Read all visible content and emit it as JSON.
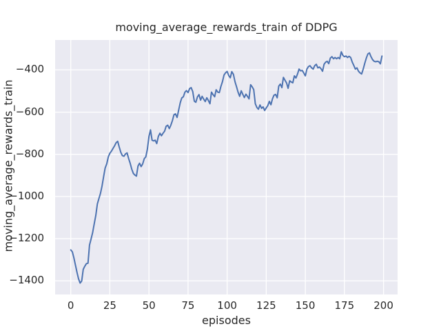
{
  "chart_data": {
    "type": "line",
    "title": "moving_average_rewards_train of DDPG",
    "xlabel": "episodes",
    "ylabel": "moving_average_rewards_train",
    "x_ticks": [
      0,
      25,
      50,
      75,
      100,
      125,
      150,
      175,
      200
    ],
    "x_tick_labels": [
      "0",
      "25",
      "50",
      "75",
      "100",
      "125",
      "150",
      "175",
      "200"
    ],
    "y_ticks": [
      -400,
      -600,
      -800,
      -1000,
      -1200,
      -1400
    ],
    "y_tick_labels": [
      "−400",
      "−600",
      "−800",
      "−1000",
      "−1200",
      "−1400"
    ],
    "xlim": [
      -10,
      209
    ],
    "ylim": [
      -1464,
      -258
    ],
    "grid": true,
    "legend_position": "none",
    "style": {
      "line_color": "#4C72B0",
      "axes_background": "#EAEAF2",
      "grid_color": "#FFFFFF",
      "text_color": "#262626",
      "figure_background": "#FFFFFF"
    },
    "series": [
      {
        "name": "moving_average_rewards_train",
        "x_start": 0,
        "x_step": 1,
        "values": [
          -1253,
          -1262,
          -1290,
          -1325,
          -1360,
          -1390,
          -1410,
          -1400,
          -1345,
          -1330,
          -1318,
          -1316,
          -1230,
          -1201,
          -1170,
          -1130,
          -1090,
          -1035,
          -1010,
          -985,
          -950,
          -905,
          -865,
          -845,
          -812,
          -795,
          -785,
          -772,
          -760,
          -745,
          -738,
          -765,
          -790,
          -806,
          -809,
          -798,
          -793,
          -820,
          -842,
          -870,
          -890,
          -898,
          -903,
          -855,
          -842,
          -858,
          -845,
          -820,
          -812,
          -775,
          -715,
          -684,
          -733,
          -736,
          -733,
          -749,
          -715,
          -700,
          -712,
          -700,
          -690,
          -667,
          -662,
          -678,
          -662,
          -640,
          -612,
          -608,
          -625,
          -590,
          -555,
          -533,
          -527,
          -505,
          -498,
          -507,
          -488,
          -484,
          -502,
          -548,
          -553,
          -528,
          -517,
          -543,
          -525,
          -538,
          -550,
          -532,
          -545,
          -560,
          -505,
          -517,
          -527,
          -494,
          -505,
          -507,
          -478,
          -456,
          -424,
          -413,
          -407,
          -426,
          -437,
          -408,
          -420,
          -455,
          -480,
          -505,
          -525,
          -499,
          -515,
          -531,
          -515,
          -525,
          -537,
          -470,
          -480,
          -493,
          -560,
          -578,
          -586,
          -566,
          -582,
          -575,
          -592,
          -580,
          -569,
          -549,
          -565,
          -537,
          -519,
          -516,
          -532,
          -477,
          -467,
          -484,
          -435,
          -449,
          -462,
          -487,
          -451,
          -457,
          -461,
          -428,
          -438,
          -419,
          -396,
          -404,
          -402,
          -414,
          -428,
          -396,
          -384,
          -380,
          -390,
          -396,
          -380,
          -373,
          -390,
          -386,
          -394,
          -406,
          -373,
          -363,
          -359,
          -370,
          -344,
          -337,
          -347,
          -341,
          -347,
          -341,
          -347,
          -314,
          -331,
          -337,
          -334,
          -341,
          -335,
          -341,
          -363,
          -379,
          -396,
          -390,
          -406,
          -414,
          -419,
          -396,
          -369,
          -344,
          -324,
          -319,
          -337,
          -351,
          -359,
          -361,
          -359,
          -361,
          -371,
          -334
        ]
      }
    ]
  }
}
